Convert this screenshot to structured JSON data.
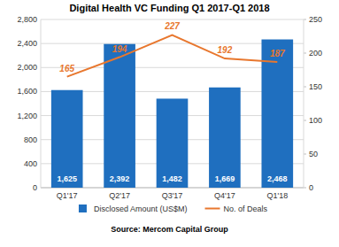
{
  "chart_data": {
    "type": "bar",
    "title": "Digital Health VC Funding Q1 2017-Q1 2018",
    "source": "Source: Mercom Capital Group",
    "categories": [
      "Q1'17",
      "Q2'17",
      "Q3'17",
      "Q4'17",
      "Q1'18"
    ],
    "series": [
      {
        "name": "Disclosed Amount (US$M)",
        "type": "bar",
        "color": "#1f6fbf",
        "values": [
          1625,
          2392,
          1482,
          1669,
          2468
        ],
        "value_labels": [
          "1,625",
          "2,392",
          "1,482",
          "1,669",
          "2,468"
        ]
      },
      {
        "name": "No. of Deals",
        "type": "line",
        "color": "#e8772e",
        "axis": "y2",
        "values": [
          165,
          194,
          227,
          192,
          187
        ]
      }
    ],
    "ylim": [
      0,
      2800
    ],
    "yticks": [
      0,
      400,
      800,
      {
        "value": 1200,
        "label": "1,200"
      },
      {
        "value": 1600,
        "label": "1,600"
      },
      {
        "value": 2000,
        "label": "2,000"
      },
      {
        "value": 2400,
        "label": "2,400"
      },
      {
        "value": 2800,
        "label": "2,800"
      }
    ],
    "y2lim": [
      0,
      250
    ],
    "y2ticks": [
      0,
      50,
      100,
      150,
      200,
      250
    ],
    "grid": true,
    "data_labels": true,
    "legend": "bottom"
  }
}
